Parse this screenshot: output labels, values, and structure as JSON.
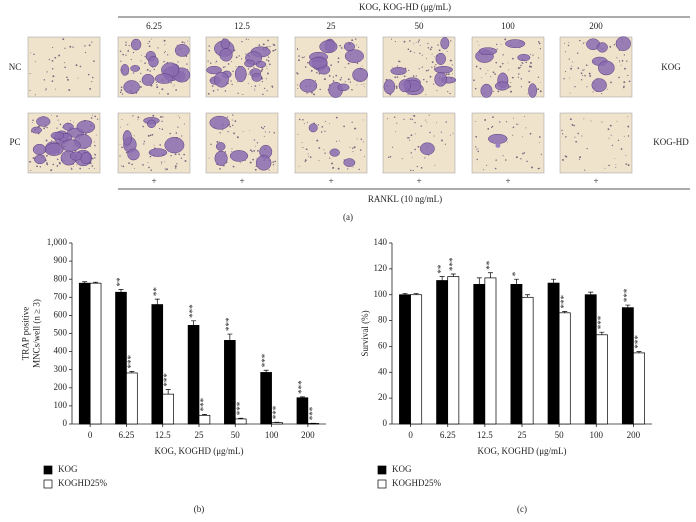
{
  "panel_a": {
    "header": "KOG, KOG-HD (μg/mL)",
    "concentrations": [
      "6.25",
      "12.5",
      "25",
      "50",
      "100",
      "200"
    ],
    "row_labels_left": [
      "NC",
      "PC"
    ],
    "row_labels_right": [
      "KOG",
      "KOG-HD"
    ],
    "plus_signs": [
      "+",
      "+",
      "+",
      "+",
      "+",
      "+"
    ],
    "footer": "RANKL (10 ng/mL)",
    "panel_label": "(a)"
  },
  "chart_data": [
    {
      "type": "bar",
      "ylabel": [
        "TRAP positive",
        "MNCs/well (n ≥ 3)"
      ],
      "xlabel": "KOG, KOGHD (μg/mL)",
      "panel_label": "(b)",
      "categories": [
        "0",
        "6.25",
        "12.5",
        "25",
        "50",
        "100",
        "200"
      ],
      "ylim": [
        0,
        1000
      ],
      "yticks": [
        0,
        100,
        200,
        300,
        400,
        500,
        600,
        700,
        800,
        900,
        {
          "value": 1000,
          "label": "1,000"
        }
      ],
      "series": [
        {
          "name": "KOG",
          "color": "#000000",
          "values": [
            778,
            728,
            660,
            545,
            462,
            285,
            145
          ],
          "errors": [
            8,
            15,
            30,
            25,
            35,
            12,
            5
          ],
          "annotations": [
            null,
            "**",
            "**",
            "***",
            "***",
            "***",
            "***"
          ]
        },
        {
          "name": "KOGHD25%",
          "color": "#ffffff",
          "values": [
            778,
            282,
            165,
            48,
            28,
            8,
            3
          ],
          "errors": [
            5,
            8,
            25,
            5,
            4,
            2,
            1
          ],
          "annotations": [
            null,
            "***",
            "***",
            "***",
            "***",
            "***",
            "***"
          ]
        }
      ]
    },
    {
      "type": "bar",
      "ylabel": [
        "Survival (%)"
      ],
      "xlabel": "KOG, KOGHD (μg/mL)",
      "panel_label": "(c)",
      "categories": [
        "0",
        "6.25",
        "12.5",
        "25",
        "50",
        "100",
        "200"
      ],
      "ylim": [
        0,
        140
      ],
      "yticks": [
        0,
        20,
        40,
        60,
        80,
        100,
        120,
        140
      ],
      "series": [
        {
          "name": "KOG",
          "color": "#000000",
          "values": [
            100,
            111,
            108,
            108,
            109,
            100,
            90
          ],
          "errors": [
            1,
            3,
            5,
            4,
            3,
            2,
            2
          ],
          "annotations": [
            null,
            "**",
            null,
            "*",
            null,
            null,
            "***"
          ]
        },
        {
          "name": "KOGHD25%",
          "color": "#ffffff",
          "values": [
            100,
            114,
            113,
            98,
            86,
            69,
            55
          ],
          "errors": [
            1,
            2,
            4,
            2,
            1,
            2,
            1
          ],
          "annotations": [
            null,
            "***",
            "**",
            null,
            "***",
            "***",
            "***"
          ]
        }
      ]
    }
  ]
}
